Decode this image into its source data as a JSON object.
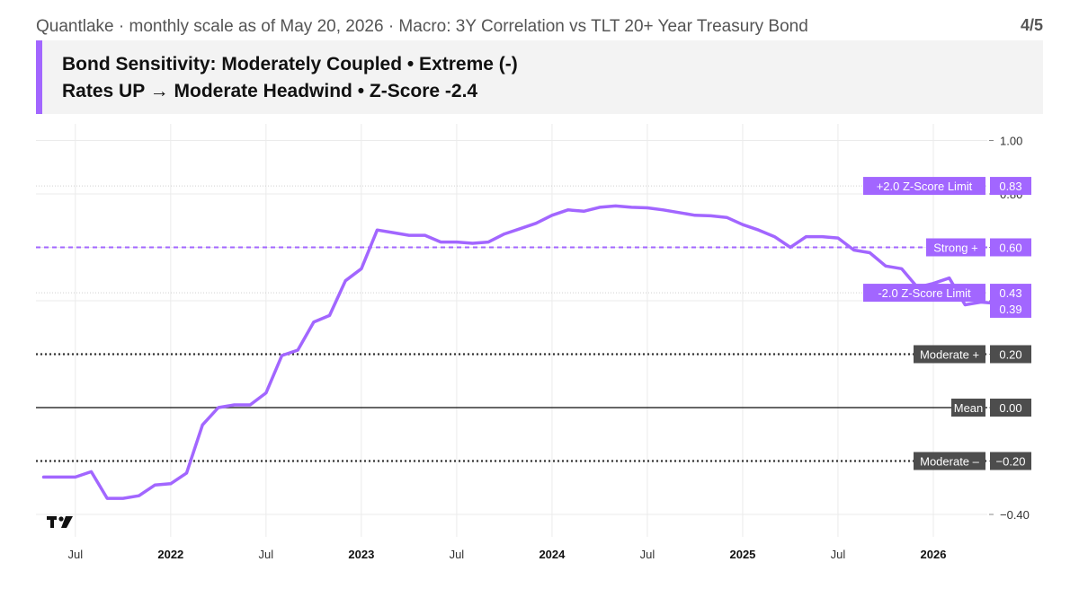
{
  "header": {
    "top_title": "Quantlake · monthly scale as of May 20, 2026 · Macro: 3Y Correlation vs TLT 20+ Year Treasury Bond",
    "page_indicator": "4/5",
    "line1": "Bond Sensitivity: Moderately Coupled • Extreme (-)",
    "line2": "Rates UP → Moderate Headwind • Z-Score -2.4"
  },
  "colors": {
    "accent": "#a266ff",
    "series_line": "#a266ff",
    "reference_line_dark": "#333333",
    "badge_dark": "#4d4d4d",
    "badge_purple": "#a266ff",
    "grid": "#ebebeb",
    "header_bg": "#f3f3f3"
  },
  "chart_data": {
    "type": "line",
    "x_axis": {
      "ticks": [
        "Jul",
        "2022",
        "Jul",
        "2023",
        "Jul",
        "2024",
        "Jul",
        "2025",
        "Jul",
        "2026"
      ],
      "bold_ticks": [
        "2022",
        "2023",
        "2024",
        "2025",
        "2026"
      ]
    },
    "y_axis": {
      "ylim": [
        -0.47,
        1.03
      ],
      "ticks": [
        "1.00",
        "0.80",
        "0.60",
        "0.40",
        "0.20",
        "0.00",
        "−0.20",
        "−0.40"
      ]
    },
    "grid": true,
    "series": [
      {
        "x": [
          "2021-05",
          "2021-06",
          "2021-07",
          "2021-08",
          "2021-09",
          "2021-10",
          "2021-11",
          "2021-12",
          "2022-01",
          "2022-02",
          "2022-03",
          "2022-04",
          "2022-05",
          "2022-06",
          "2022-07",
          "2022-08",
          "2022-09",
          "2022-10",
          "2022-11",
          "2022-12",
          "2023-01",
          "2023-02",
          "2023-03",
          "2023-04",
          "2023-05",
          "2023-06",
          "2023-07",
          "2023-08",
          "2023-09",
          "2023-10",
          "2023-11",
          "2023-12",
          "2024-01",
          "2024-02",
          "2024-03",
          "2024-04",
          "2024-05",
          "2024-06",
          "2024-07",
          "2024-08",
          "2024-09",
          "2024-10",
          "2024-11",
          "2024-12",
          "2025-01",
          "2025-02",
          "2025-03",
          "2025-04",
          "2025-05",
          "2025-06",
          "2025-07",
          "2025-08",
          "2025-09",
          "2025-10",
          "2025-11",
          "2025-12",
          "2026-01",
          "2026-02",
          "2026-03",
          "2026-04",
          "2026-05"
        ],
        "y": [
          -0.26,
          -0.26,
          -0.26,
          -0.24,
          -0.34,
          -0.34,
          -0.33,
          -0.29,
          -0.285,
          -0.245,
          -0.065,
          0.0,
          0.01,
          0.01,
          0.055,
          0.195,
          0.215,
          0.32,
          0.345,
          0.475,
          0.52,
          0.665,
          0.655,
          0.645,
          0.645,
          0.62,
          0.62,
          0.615,
          0.62,
          0.65,
          0.67,
          0.69,
          0.72,
          0.74,
          0.735,
          0.75,
          0.755,
          0.75,
          0.748,
          0.74,
          0.73,
          0.72,
          0.718,
          0.712,
          0.685,
          0.665,
          0.64,
          0.6,
          0.64,
          0.64,
          0.635,
          0.59,
          0.58,
          0.53,
          0.52,
          0.45,
          0.465,
          0.485,
          0.385,
          0.395,
          0.39
        ]
      }
    ],
    "reference_lines": [
      {
        "label": "+2.0 Z-Score Limit",
        "value": 0.83,
        "value_label": "0.83",
        "style": "dotted-light",
        "badge": "purple"
      },
      {
        "label": "Strong +",
        "value": 0.6,
        "value_label": "0.60",
        "style": "dashed-purple",
        "badge": "purple"
      },
      {
        "label": "-2.0 Z-Score Limit",
        "value": 0.43,
        "value_label": "0.43",
        "style": "dotted-light",
        "badge": "purple"
      },
      {
        "label": "Moderate +",
        "value": 0.2,
        "value_label": "0.20",
        "style": "dotted-dark",
        "badge": "dark"
      },
      {
        "label": "Mean",
        "value": 0.0,
        "value_label": "0.00",
        "style": "solid-dark",
        "badge": "dark"
      },
      {
        "label": "Moderate –",
        "value": -0.2,
        "value_label": "−0.20",
        "style": "dotted-dark",
        "badge": "dark"
      }
    ],
    "last_value": {
      "value": 0.39,
      "value_label": "0.39"
    }
  },
  "logo": {
    "text": "TV"
  }
}
